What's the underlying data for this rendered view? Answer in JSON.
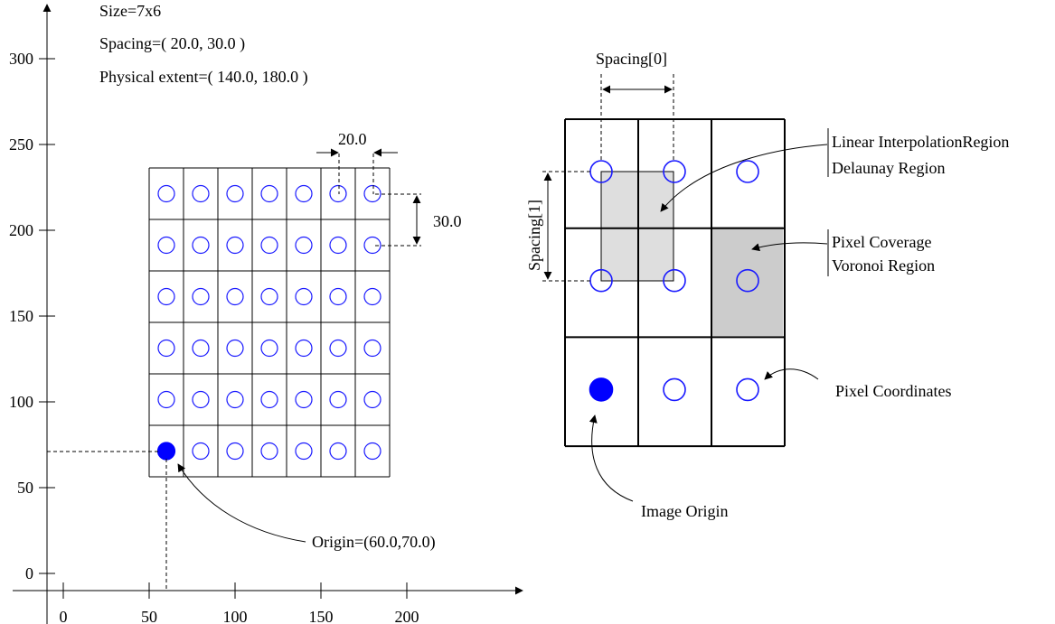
{
  "left_panel": {
    "header_lines": [
      "Size=7x6",
      "Spacing=( 20.0, 30.0 )",
      "Physical extent=( 140.0, 180.0 )"
    ],
    "x_ticks": [
      "0",
      "50",
      "100",
      "150",
      "200"
    ],
    "y_ticks": [
      "0",
      "50",
      "100",
      "150",
      "200",
      "250",
      "300"
    ],
    "spacing_x_label": "20.0",
    "spacing_y_label": "30.0",
    "origin_label": "Origin=(60.0,70.0)",
    "grid_columns": 7,
    "grid_rows": 6
  },
  "right_panel": {
    "spacing0_label": "Spacing[0]",
    "spacing1_label": "Spacing[1]",
    "region_labels": {
      "linear_interpolation": "Linear InterpolationRegion",
      "delaunay": "Delaunay Region",
      "pixel_coverage": "Pixel Coverage",
      "voronoi": "Voronoi Region",
      "pixel_coordinates": "Pixel Coordinates",
      "image_origin": "Image Origin"
    },
    "grid_columns": 3,
    "grid_rows": 3
  },
  "colors": {
    "pixel_circle": "#1a1aff",
    "origin_fill": "#0000ff",
    "interpolation_fill": "#dedede",
    "coverage_fill": "#cccccc",
    "lines": "#000000"
  }
}
